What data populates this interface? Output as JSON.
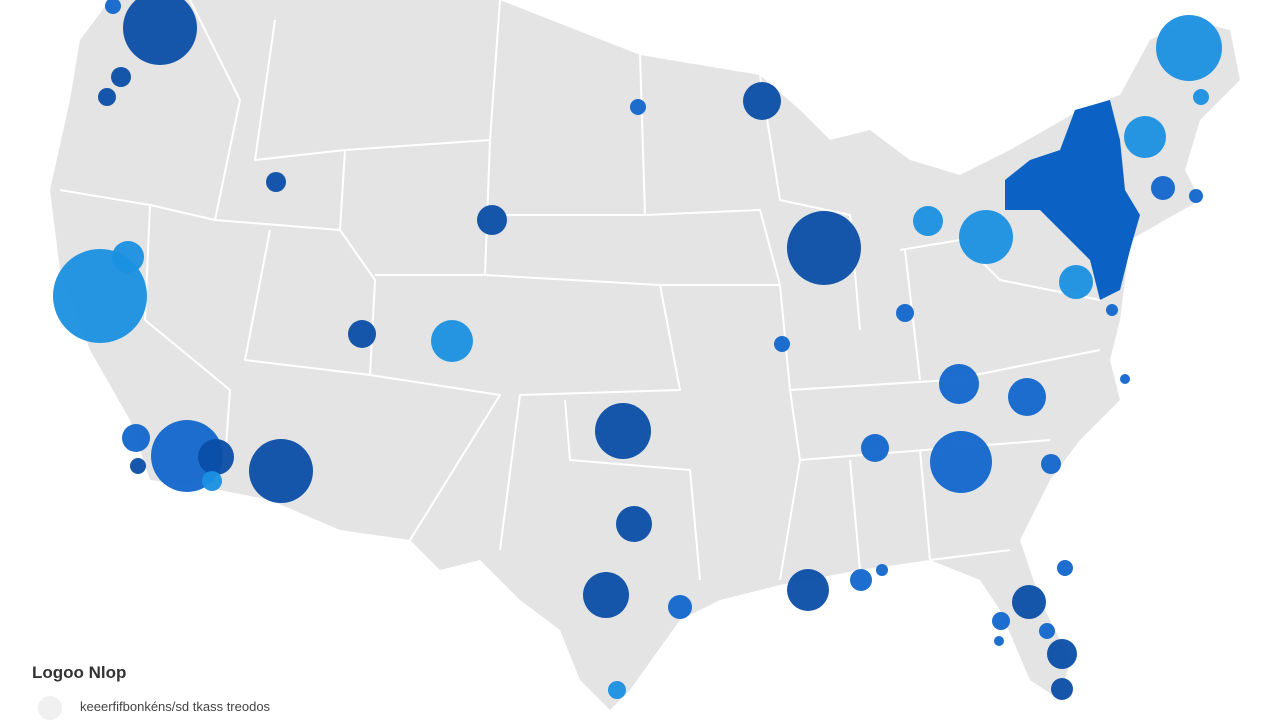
{
  "legend": {
    "title": "Logoo Nlop",
    "caption": "keeerfifbonkéns/sd tkass treodos"
  }
}
